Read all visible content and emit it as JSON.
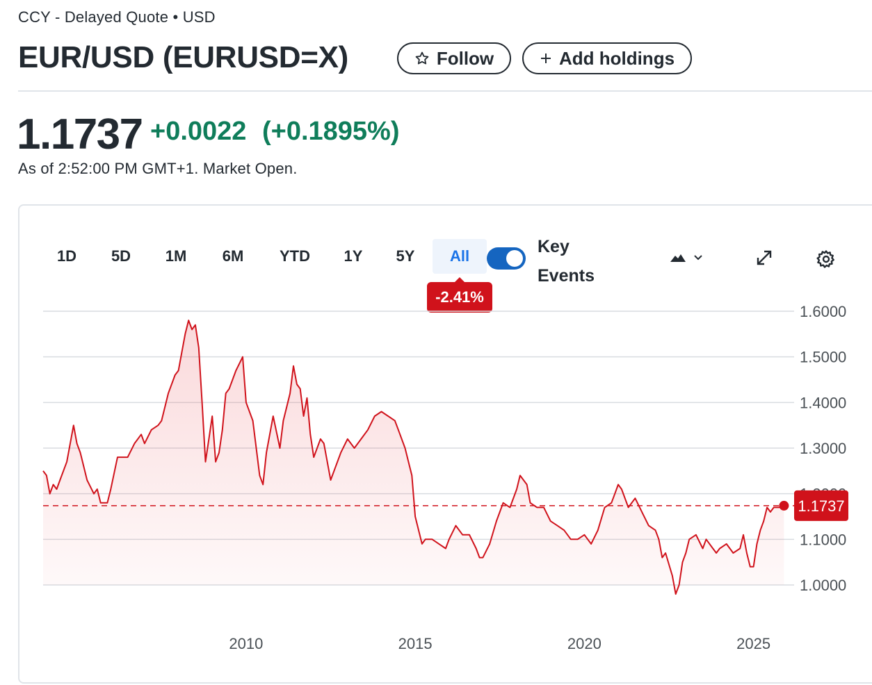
{
  "header": {
    "exchange": "CCY",
    "quote_type": "Delayed Quote",
    "currency": "USD",
    "title": "EUR/USD (EURUSD=X)",
    "follow_label": "Follow",
    "add_holdings_label": "Add holdings"
  },
  "quote": {
    "price": "1.1737",
    "change": "+0.0022",
    "change_pct": "(+0.1895%)",
    "as_of": "As of 2:52:00 PM GMT+1. Market Open.",
    "change_color": "#0f7d5a"
  },
  "chart_toolbar": {
    "ranges": [
      "1D",
      "5D",
      "1M",
      "6M",
      "YTD",
      "1Y",
      "5Y",
      "All"
    ],
    "selected_range": "All",
    "key_events_label": "Key Events",
    "key_events_enabled": true,
    "range_performance": "-2.41%",
    "chart_type_icon": "mountain-chart-icon",
    "expand_icon": "expand-icon",
    "settings_icon": "gear-icon"
  },
  "chart_data": {
    "type": "area",
    "title": "",
    "xlabel": "",
    "ylabel": "",
    "xlim": [
      2004.0,
      2026.2
    ],
    "ylim": [
      0.96,
      1.6
    ],
    "y_ticks": [
      "1.6000",
      "1.5000",
      "1.4000",
      "1.3000",
      "1.2000",
      "1.1000",
      "1.0000"
    ],
    "x_ticks": [
      "2010",
      "2015",
      "2020",
      "2025"
    ],
    "current_value": "1.1737",
    "line_color": "#d0121b",
    "grid": "horizontal",
    "series": [
      {
        "x": [
          2004.0,
          2004.1,
          2004.2,
          2004.3,
          2004.4,
          2004.5,
          2004.7,
          2004.9,
          2005.0,
          2005.1,
          2005.3,
          2005.5,
          2005.6,
          2005.7,
          2005.9,
          2006.0,
          2006.2,
          2006.3,
          2006.5,
          2006.7,
          2006.9,
          2007.0,
          2007.2,
          2007.4,
          2007.5,
          2007.7,
          2007.9,
          2008.0,
          2008.2,
          2008.3,
          2008.4,
          2008.5,
          2008.6,
          2008.7,
          2008.8,
          2008.9,
          2009.0,
          2009.1,
          2009.2,
          2009.3,
          2009.4,
          2009.5,
          2009.7,
          2009.9,
          2010.0,
          2010.2,
          2010.4,
          2010.5,
          2010.6,
          2010.8,
          2011.0,
          2011.1,
          2011.3,
          2011.4,
          2011.5,
          2011.6,
          2011.7,
          2011.8,
          2011.9,
          2012.0,
          2012.2,
          2012.3,
          2012.5,
          2012.6,
          2012.8,
          2013.0,
          2013.2,
          2013.4,
          2013.6,
          2013.8,
          2014.0,
          2014.2,
          2014.4,
          2014.5,
          2014.7,
          2014.8,
          2014.9,
          2015.0,
          2015.1,
          2015.2,
          2015.3,
          2015.5,
          2015.7,
          2015.9,
          2016.0,
          2016.2,
          2016.4,
          2016.6,
          2016.8,
          2016.9,
          2017.0,
          2017.2,
          2017.4,
          2017.6,
          2017.8,
          2018.0,
          2018.1,
          2018.3,
          2018.4,
          2018.6,
          2018.8,
          2019.0,
          2019.2,
          2019.4,
          2019.6,
          2019.8,
          2020.0,
          2020.1,
          2020.2,
          2020.4,
          2020.6,
          2020.8,
          2020.9,
          2021.0,
          2021.1,
          2021.3,
          2021.5,
          2021.7,
          2021.9,
          2022.1,
          2022.2,
          2022.3,
          2022.4,
          2022.6,
          2022.7,
          2022.8,
          2022.9,
          2023.0,
          2023.1,
          2023.3,
          2023.5,
          2023.6,
          2023.8,
          2023.9,
          2024.0,
          2024.2,
          2024.4,
          2024.6,
          2024.7,
          2024.8,
          2024.9,
          2025.0,
          2025.1,
          2025.2,
          2025.3,
          2025.4,
          2025.5,
          2025.6,
          2025.8,
          2025.9
        ],
        "values": [
          1.25,
          1.24,
          1.2,
          1.22,
          1.21,
          1.23,
          1.27,
          1.35,
          1.31,
          1.29,
          1.23,
          1.2,
          1.21,
          1.18,
          1.18,
          1.21,
          1.28,
          1.28,
          1.28,
          1.31,
          1.33,
          1.31,
          1.34,
          1.35,
          1.36,
          1.42,
          1.46,
          1.47,
          1.55,
          1.58,
          1.56,
          1.57,
          1.52,
          1.4,
          1.27,
          1.32,
          1.37,
          1.27,
          1.29,
          1.34,
          1.42,
          1.43,
          1.47,
          1.5,
          1.4,
          1.36,
          1.24,
          1.22,
          1.29,
          1.37,
          1.3,
          1.36,
          1.42,
          1.48,
          1.44,
          1.43,
          1.37,
          1.41,
          1.33,
          1.28,
          1.32,
          1.31,
          1.23,
          1.25,
          1.29,
          1.32,
          1.3,
          1.32,
          1.34,
          1.37,
          1.38,
          1.37,
          1.36,
          1.34,
          1.3,
          1.27,
          1.24,
          1.15,
          1.12,
          1.09,
          1.1,
          1.1,
          1.09,
          1.08,
          1.1,
          1.13,
          1.11,
          1.11,
          1.08,
          1.06,
          1.06,
          1.09,
          1.14,
          1.18,
          1.17,
          1.21,
          1.24,
          1.22,
          1.18,
          1.17,
          1.17,
          1.14,
          1.13,
          1.12,
          1.1,
          1.1,
          1.11,
          1.1,
          1.09,
          1.12,
          1.17,
          1.18,
          1.2,
          1.22,
          1.21,
          1.17,
          1.19,
          1.16,
          1.13,
          1.12,
          1.1,
          1.06,
          1.07,
          1.02,
          0.98,
          1.0,
          1.05,
          1.07,
          1.1,
          1.11,
          1.08,
          1.1,
          1.08,
          1.07,
          1.08,
          1.09,
          1.07,
          1.08,
          1.11,
          1.07,
          1.04,
          1.04,
          1.09,
          1.12,
          1.14,
          1.17,
          1.16,
          1.17,
          1.17,
          1.1737
        ]
      }
    ]
  }
}
